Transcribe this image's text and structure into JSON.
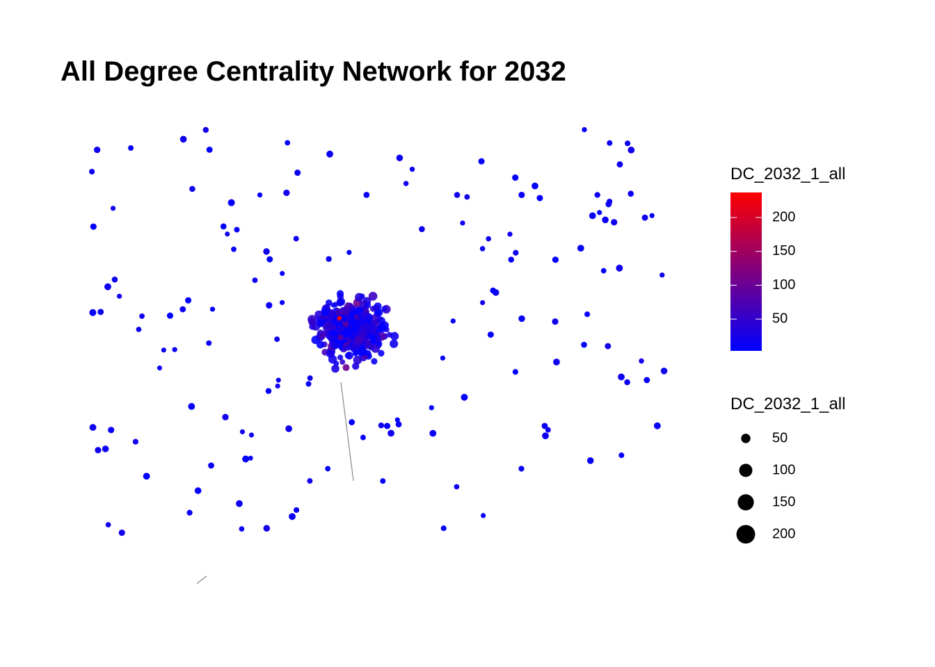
{
  "chart_data": {
    "type": "network",
    "title": "All Degree Centrality Network for 2032",
    "color_legend": {
      "title": "DC_2032_1_all",
      "lim": [
        3,
        237
      ],
      "ticks": [
        50,
        100,
        150,
        200
      ],
      "colors": [
        "#0000ff",
        "#ff0000"
      ]
    },
    "size_legend": {
      "title": "DC_2032_1_all",
      "values": [
        50,
        100,
        150,
        200
      ],
      "color": "#000000"
    }
  }
}
